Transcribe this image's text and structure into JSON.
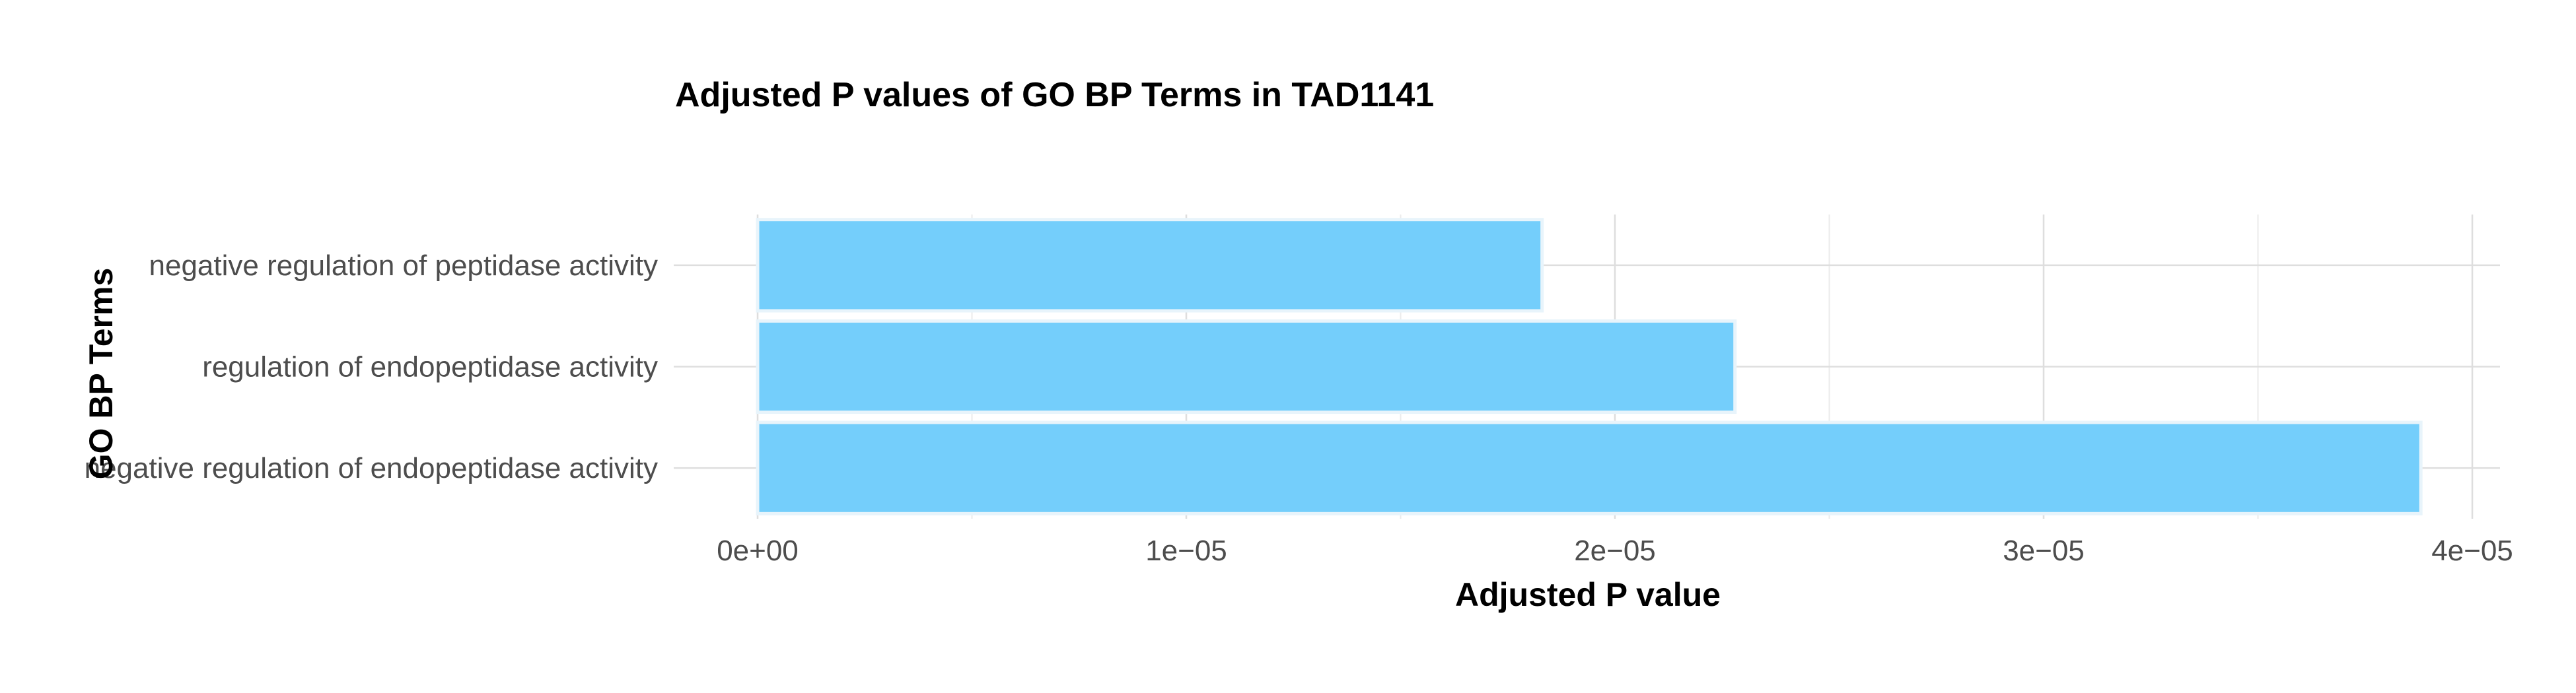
{
  "chart_data": {
    "type": "bar",
    "orientation": "horizontal",
    "title": "Adjusted P values of GO BP Terms in TAD1141",
    "xlabel": "Adjusted P value",
    "ylabel": "GO BP Terms",
    "categories": [
      "negative regulation of peptidase activity",
      "regulation of endopeptidase activity",
      "negative regulation of endopeptidase activity"
    ],
    "values": [
      1.83e-05,
      2.28e-05,
      3.88e-05
    ],
    "xlim": [
      0,
      4e-05
    ],
    "x_ticks": [
      0,
      1e-05,
      2e-05,
      3e-05,
      4e-05
    ],
    "x_tick_labels": [
      "0e+00",
      "1e−05",
      "2e−05",
      "3e−05",
      "4e−05"
    ],
    "x_minor_ticks": [
      5e-06,
      1.5e-05,
      2.5e-05,
      3.5e-05
    ],
    "grid": true,
    "bar_color": "#74cefb",
    "bar_outline_color": "#e8f4fb"
  }
}
